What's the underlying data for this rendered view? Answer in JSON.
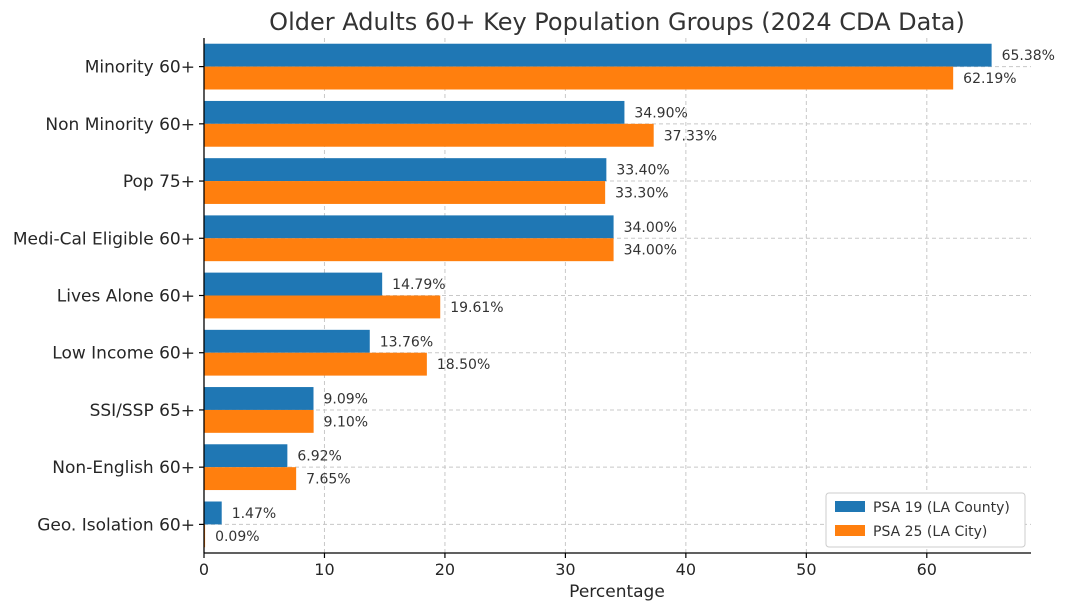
{
  "chart_data": {
    "type": "bar",
    "orientation": "horizontal",
    "title": "Older Adults 60+ Key Population Groups (2024 CDA Data)",
    "xlabel": "Percentage",
    "ylabel": "",
    "xlim": [
      0,
      68.65
    ],
    "xticks": [
      0,
      10,
      20,
      30,
      40,
      50,
      60
    ],
    "grid": true,
    "legend_position": "lower-right",
    "categories": [
      "Minority 60+",
      "Non Minority 60+",
      "Pop 75+",
      "Medi-Cal Eligible 60+",
      "Lives Alone 60+",
      "Low Income 60+",
      "SSI/SSP 65+",
      "Non-English 60+",
      "Geo. Isolation 60+"
    ],
    "series": [
      {
        "name": "PSA 19 (LA County)",
        "color": "#1f77b4",
        "values": [
          65.38,
          34.9,
          33.4,
          34.0,
          14.79,
          13.76,
          9.09,
          6.92,
          1.47
        ],
        "labels": [
          "65.38%",
          "34.90%",
          "33.40%",
          "34.00%",
          "14.79%",
          "13.76%",
          "9.09%",
          "6.92%",
          "1.47%"
        ]
      },
      {
        "name": "PSA 25 (LA City)",
        "color": "#ff7f0e",
        "values": [
          62.19,
          37.33,
          33.3,
          34.0,
          19.61,
          18.5,
          9.1,
          7.65,
          0.09
        ],
        "labels": [
          "62.19%",
          "37.33%",
          "33.30%",
          "34.00%",
          "19.61%",
          "18.50%",
          "9.10%",
          "7.65%",
          "0.09%"
        ]
      }
    ]
  }
}
